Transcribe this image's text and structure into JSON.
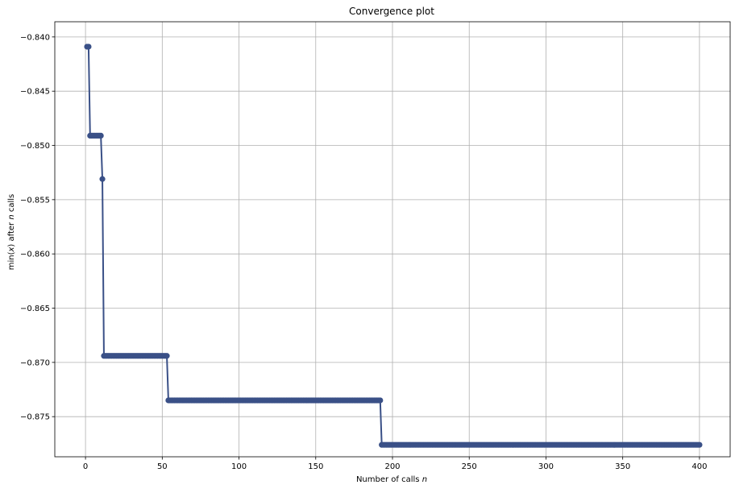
{
  "chart_data": {
    "type": "line",
    "title": "Convergence plot",
    "xlabel": "Number of calls",
    "xlabel_var": "n",
    "ylabel_pre": "min",
    "ylabel_x": "x",
    "ylabel_mid": " after ",
    "ylabel_var": "n",
    "ylabel_post": " calls",
    "xlim": [
      -20,
      420
    ],
    "ylim": [
      -0.8787,
      -0.8386
    ],
    "xticks": [
      0,
      50,
      100,
      150,
      200,
      250,
      300,
      350,
      400
    ],
    "yticks": [
      -0.84,
      -0.845,
      -0.85,
      -0.855,
      -0.86,
      -0.865,
      -0.87,
      -0.875
    ],
    "xtick_labels": [
      "0",
      "50",
      "100",
      "150",
      "200",
      "250",
      "300",
      "350",
      "400"
    ],
    "ytick_labels": [
      "−0.840",
      "−0.845",
      "−0.850",
      "−0.855",
      "−0.860",
      "−0.865",
      "−0.870",
      "−0.875"
    ],
    "grid": true,
    "n_calls": 400,
    "series": [
      {
        "color": "#3a5087",
        "steps": [
          {
            "from": 1,
            "to": 2,
            "y": -0.8409
          },
          {
            "from": 3,
            "to": 10,
            "y": -0.8491
          },
          {
            "from": 11,
            "to": 11,
            "y": -0.8531
          },
          {
            "from": 12,
            "to": 53,
            "y": -0.8694
          },
          {
            "from": 54,
            "to": 192,
            "y": -0.8735
          },
          {
            "from": 193,
            "to": 400,
            "y": -0.8776
          }
        ]
      }
    ]
  }
}
